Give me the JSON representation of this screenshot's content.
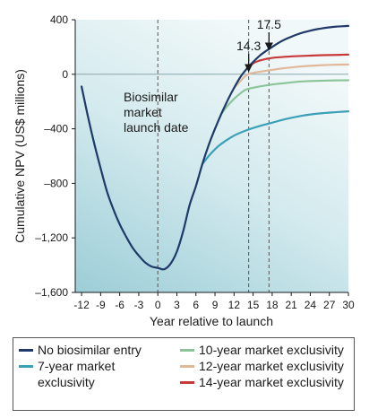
{
  "chart_data": {
    "type": "line",
    "title": "",
    "xlabel": "Year relative to launch",
    "ylabel": "Cumulative NPV (US$ millions)",
    "xlim": [
      -13,
      30
    ],
    "ylim": [
      -1600,
      400
    ],
    "x_ticks": [
      -12,
      -9,
      -6,
      -3,
      0,
      3,
      6,
      9,
      12,
      15,
      18,
      21,
      24,
      27,
      30
    ],
    "x_tick_labels": [
      "-12",
      "-9",
      "-6",
      "-3",
      "0",
      "3",
      "6",
      "9",
      "12",
      "15",
      "18",
      "21",
      "24",
      "27",
      "30"
    ],
    "y_ticks": [
      400,
      0,
      -400,
      -800,
      -1200,
      -1600
    ],
    "y_tick_labels": [
      "400",
      "0",
      "–400",
      "–800",
      "–1,200",
      "–1,600"
    ],
    "grid": false,
    "background": "gradient",
    "series": [
      {
        "name": "No biosimilar entry",
        "color": "#1f3a68",
        "x": [
          -12,
          -11,
          -10,
          -9,
          -8,
          -7,
          -6,
          -5,
          -4,
          -3,
          -2,
          -1,
          0,
          1,
          2,
          3,
          4,
          5,
          6,
          7,
          8,
          9,
          10,
          11,
          12,
          13,
          14,
          15,
          16,
          17,
          18,
          19,
          20,
          21,
          22,
          23,
          24,
          25,
          26,
          27,
          28,
          29,
          30
        ],
        "values": [
          -90,
          -310,
          -510,
          -690,
          -860,
          -990,
          -1100,
          -1190,
          -1270,
          -1330,
          -1380,
          -1410,
          -1420,
          -1430,
          -1390,
          -1300,
          -1150,
          -960,
          -820,
          -660,
          -520,
          -400,
          -290,
          -190,
          -100,
          -20,
          40,
          90,
          135,
          170,
          200,
          230,
          255,
          275,
          293,
          308,
          320,
          330,
          338,
          344,
          349,
          352,
          355
        ]
      },
      {
        "name": "7-year market\nexclusivity",
        "color": "#3aa0b8",
        "x": [
          7,
          8,
          9,
          10,
          12,
          14,
          16,
          18,
          20,
          22,
          24,
          26,
          28,
          30
        ],
        "values": [
          -660,
          -600,
          -550,
          -510,
          -450,
          -410,
          -380,
          -355,
          -330,
          -310,
          -295,
          -285,
          -278,
          -272
        ]
      },
      {
        "name": "10-year market exclusivity",
        "color": "#8cc49a",
        "x": [
          10,
          11,
          12,
          13,
          14,
          16,
          18,
          20,
          22,
          24,
          26,
          28,
          30
        ],
        "values": [
          -290,
          -230,
          -180,
          -140,
          -110,
          -90,
          -75,
          -65,
          -55,
          -50,
          -47,
          -45,
          -44
        ]
      },
      {
        "name": "12-year market exclusivity",
        "color": "#e0b89a",
        "x": [
          12,
          13,
          14,
          15,
          16,
          18,
          20,
          22,
          24,
          26,
          28,
          30
        ],
        "values": [
          -100,
          -50,
          -5,
          10,
          18,
          32,
          45,
          55,
          62,
          67,
          70,
          72
        ]
      },
      {
        "name": "14-year market exclusivity",
        "color": "#c83a3a",
        "x": [
          14,
          15,
          16,
          17,
          18,
          20,
          22,
          24,
          26,
          28,
          30
        ],
        "values": [
          40,
          80,
          100,
          112,
          120,
          128,
          133,
          137,
          140,
          142,
          144
        ]
      }
    ],
    "vertical_lines": [
      {
        "x": 0,
        "label": "Biosimilar\nmarket\nlaunch date"
      },
      {
        "x": 14.3,
        "label": "14.3"
      },
      {
        "x": 17.5,
        "label": "17.5"
      }
    ],
    "legend_position": "bottom"
  }
}
